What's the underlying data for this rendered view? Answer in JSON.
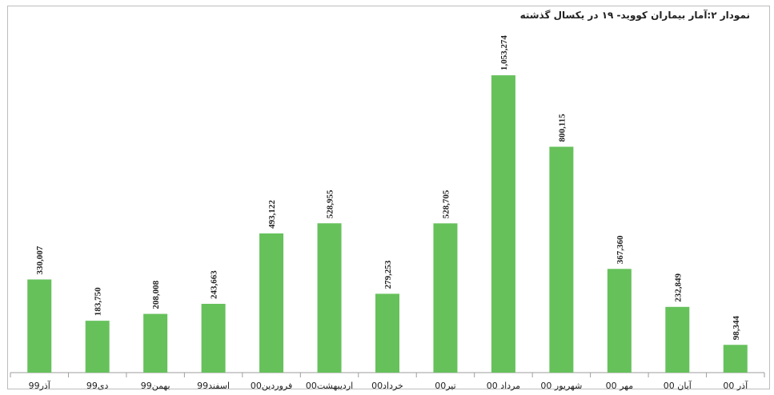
{
  "chart_data": {
    "type": "bar",
    "title": "نمودار ۲:آمار بیماران کووید- ۱۹ در یکسال گذشته",
    "xlabel": "",
    "ylabel": "",
    "ylim": [
      0,
      1150000
    ],
    "grid": false,
    "bar_color": "#66c15b",
    "categories": [
      "آذر99",
      "دی99",
      "بهمن99",
      "اسفند99",
      "فروردین00",
      "اردیبهشت00",
      "خرداد00",
      "تیر00",
      "مرداد 00",
      "شهریور 00",
      "مهر 00",
      "آبان 00",
      "آذر 00"
    ],
    "values": [
      330007,
      183750,
      208008,
      243663,
      493122,
      528955,
      279253,
      528705,
      1053274,
      800115,
      367360,
      232849,
      98344
    ],
    "value_labels": [
      "330,007",
      "183,750",
      "208,008",
      "243,663",
      "493,122",
      "528,955",
      "279,253",
      "528,705",
      "1,053,274",
      "800,115",
      "367,360",
      "232,849",
      "98,344"
    ]
  }
}
